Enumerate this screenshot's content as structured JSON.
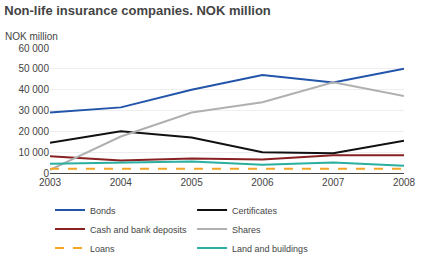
{
  "chart_data": {
    "type": "line",
    "title": "Non-life insurance companies. NOK million",
    "ylabel": "NOK million",
    "x": [
      2003,
      2004,
      2005,
      2006,
      2007,
      2008
    ],
    "series": [
      {
        "name": "Bonds",
        "color": "#2255aa",
        "line_style": "solid",
        "values": [
          29000,
          31500,
          40000,
          47000,
          43500,
          50000
        ]
      },
      {
        "name": "Certificates",
        "color": "#111111",
        "line_style": "solid",
        "values": [
          14500,
          20000,
          17000,
          10000,
          9500,
          15500
        ]
      },
      {
        "name": "Cash and bank deposits",
        "color": "#882222",
        "line_style": "solid",
        "values": [
          8000,
          6000,
          7000,
          6500,
          8500,
          8500
        ]
      },
      {
        "name": "Shares",
        "color": "#b0b0b0",
        "line_style": "solid",
        "values": [
          1500,
          17500,
          29000,
          34000,
          43500,
          37000
        ]
      },
      {
        "name": "Loans",
        "color": "#f5a623",
        "line_style": "dashed",
        "values": [
          2000,
          2000,
          2000,
          2000,
          2000,
          2000
        ]
      },
      {
        "name": "Land and buildings",
        "color": "#2aafa0",
        "line_style": "solid",
        "values": [
          4500,
          5000,
          5500,
          4000,
          5000,
          3500
        ]
      }
    ],
    "xlim": [
      2003,
      2008
    ],
    "xticks": [
      2003,
      2004,
      2005,
      2006,
      2007,
      2008
    ],
    "ylim": [
      0,
      60000
    ],
    "yticks": [
      0,
      {
        "value": 10000,
        "label": "10 000"
      },
      {
        "value": 20000,
        "label": "20 000"
      },
      {
        "value": 30000,
        "label": "30 000"
      },
      {
        "value": 40000,
        "label": "40 000"
      },
      {
        "value": 50000,
        "label": "50 000"
      },
      {
        "value": 60000,
        "label": "60 000"
      }
    ],
    "grid": true,
    "legend": "bottom"
  }
}
